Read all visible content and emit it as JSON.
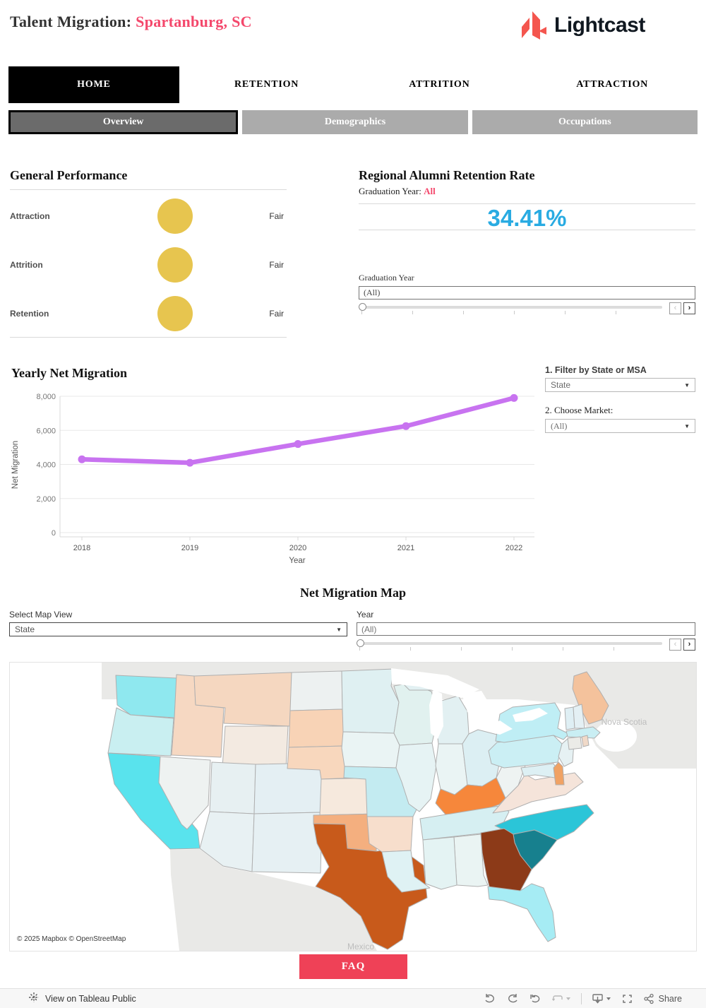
{
  "colors": {
    "accent": "#F4486C",
    "logo": "#F4564E",
    "blue": "#29ABE2",
    "yellow": "#E7C54F",
    "faq": "#EF4157",
    "tab_active_bg": "#000000",
    "subtab_active_bg": "#6B6B6B",
    "subtab_bg": "#ABABAB"
  },
  "header": {
    "title": "Talent Migration:",
    "region": "Spartanburg, SC",
    "logo_text": "Lightcast"
  },
  "nav": {
    "tabs": [
      {
        "label": "HOME"
      },
      {
        "label": "RETENTION"
      },
      {
        "label": "ATTRITION"
      },
      {
        "label": "ATTRACTION"
      }
    ]
  },
  "subnav": {
    "tabs": [
      {
        "label": "Overview"
      },
      {
        "label": "Demographics"
      },
      {
        "label": "Occupations"
      }
    ]
  },
  "general_performance": {
    "title": "General Performance",
    "rows": [
      {
        "metric": "Attraction",
        "rating": "Fair"
      },
      {
        "metric": "Attrition",
        "rating": "Fair"
      },
      {
        "metric": "Retention",
        "rating": "Fair"
      }
    ]
  },
  "retention_rate": {
    "title": "Regional Alumni Retention Rate",
    "subtitle_label": "Graduation Year:",
    "subtitle_value": "All",
    "value": "34.41%",
    "filter_label": "Graduation Year",
    "filter_value": "(All)",
    "prev_arrow": "‹",
    "next_arrow": "›"
  },
  "chart_data": {
    "type": "line",
    "title": "Yearly Net Migration",
    "x": [
      2018,
      2019,
      2020,
      2021,
      2022
    ],
    "values": [
      4300,
      4100,
      5200,
      6250,
      7900
    ],
    "xlabel": "Year",
    "ylabel": "Net Migration",
    "ylim": [
      0,
      8000
    ],
    "yticks": [
      0,
      2000,
      4000,
      6000,
      8000
    ],
    "line_color": "#C873F0",
    "grid": true,
    "legend": "none"
  },
  "filters": {
    "filter1_label": "1. Filter by State or MSA",
    "filter1_value": "State",
    "filter2_label": "2. Choose Market:",
    "filter2_value": "(All)",
    "caret": "▼"
  },
  "map_section": {
    "title": "Net Migration Map",
    "map_view_label": "Select Map View",
    "map_view_value": "State",
    "year_label": "Year",
    "year_value": "(All)",
    "prev_arrow": "‹",
    "next_arrow": "›",
    "attribution": "© 2025 Mapbox © OpenStreetMap",
    "nova_scotia_label": "Nova Scotia",
    "mexico_label": "Mexico",
    "state_colors": {
      "WA": "#8FE8EF",
      "OR": "#C9EFF1",
      "CA": "#59E3ED",
      "NV": "#EEF2F1",
      "ID": "#F6D8C2",
      "MT": "#F5D7C0",
      "WY": "#F3EAE1",
      "UT": "#E7F0F2",
      "CO": "#E4EFF3",
      "AZ": "#E8F1F3",
      "NM": "#E6F0F3",
      "ND": "#EDF1F1",
      "SD": "#F8D3B6",
      "NE": "#F8D7BD",
      "KS": "#F6E9DD",
      "OK": "#F4AF7F",
      "TX": "#C85A1B",
      "MN": "#DFF0F2",
      "IA": "#EAF4F4",
      "MO": "#C3EBF1",
      "AR": "#F7DECC",
      "LA": "#DFF2F4",
      "WI": "#E1F1EF",
      "IL": "#E6F3F4",
      "MI": "#E2F0F2",
      "IN": "#EAF4F4",
      "OH": "#DCEFF3",
      "WV": "#EEF3F2",
      "KY": "#F6873B",
      "TN": "#D6EFF2",
      "MS": "#E4F3F3",
      "AL": "#EAF4F3",
      "GA": "#8C3A18",
      "FL": "#A6ECF4",
      "SC": "#17808E",
      "NC": "#2BC5D8",
      "VA": "#F5E4DA",
      "PA": "#CBEFF4",
      "NY": "#BFEEF5",
      "NJ": "#E6F1F3",
      "DE": "#F0A264",
      "MD": "#DDF0F4",
      "ME": "#F4C29C",
      "VT": "#DFEFF4",
      "NH": "#E4F0F4",
      "MA": "#C9EEF3",
      "CT": "#EBEBE7",
      "RI": "#F0D9C8"
    }
  },
  "faq": {
    "label": "FAQ"
  },
  "footer": {
    "view_label": "View on Tableau Public",
    "share_label": "Share"
  }
}
